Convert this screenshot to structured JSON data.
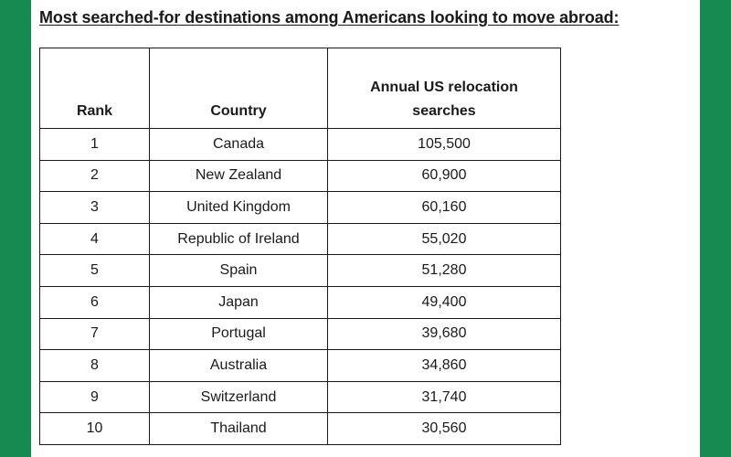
{
  "title": "Most searched-for destinations among Americans looking to move abroad:",
  "table": {
    "headers": {
      "rank": "Rank",
      "country": "Country",
      "searches": "Annual US relocation searches"
    },
    "rows": [
      {
        "rank": "1",
        "country": "Canada",
        "searches": "105,500"
      },
      {
        "rank": "2",
        "country": "New Zealand",
        "searches": "60,900"
      },
      {
        "rank": "3",
        "country": "United Kingdom",
        "searches": "60,160"
      },
      {
        "rank": "4",
        "country": "Republic of Ireland",
        "searches": "55,020"
      },
      {
        "rank": "5",
        "country": "Spain",
        "searches": "51,280"
      },
      {
        "rank": "6",
        "country": "Japan",
        "searches": "49,400"
      },
      {
        "rank": "7",
        "country": "Portugal",
        "searches": "39,680"
      },
      {
        "rank": "8",
        "country": "Australia",
        "searches": "34,860"
      },
      {
        "rank": "9",
        "country": "Switzerland",
        "searches": "31,740"
      },
      {
        "rank": "10",
        "country": "Thailand",
        "searches": "30,560"
      }
    ]
  },
  "colors": {
    "frame": "#178a52",
    "page": "#ffffff",
    "text": "#1a1a1a"
  }
}
